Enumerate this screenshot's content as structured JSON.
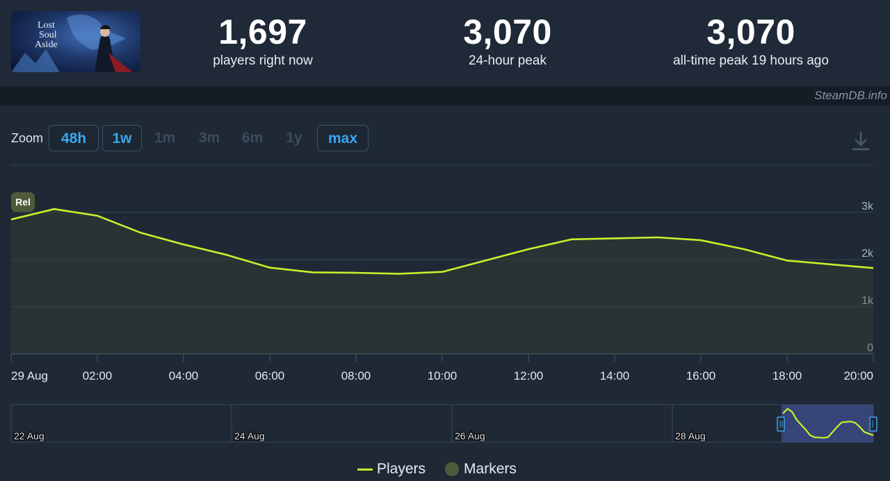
{
  "game": {
    "title_line1": "Lost",
    "title_line2": "Soul",
    "title_line3": "Aside"
  },
  "stats": [
    {
      "value": "1,697",
      "label": "players right now"
    },
    {
      "value": "3,070",
      "label": "24-hour peak"
    },
    {
      "value": "3,070",
      "label": "all-time peak 19 hours ago"
    }
  ],
  "credit": "SteamDB.info",
  "zoom": {
    "label": "Zoom",
    "buttons": [
      {
        "label": "48h",
        "active": true
      },
      {
        "label": "1w",
        "active": true
      },
      {
        "label": "1m",
        "active": false
      },
      {
        "label": "3m",
        "active": false
      },
      {
        "label": "6m",
        "active": false
      },
      {
        "label": "1y",
        "active": false
      },
      {
        "label": "max",
        "active": true
      }
    ]
  },
  "marker_badge": "Rel",
  "legend": {
    "players": "Players",
    "markers": "Markers"
  },
  "colors": {
    "line": "#c8f02c",
    "accent": "#3ba7f0",
    "marker": "#4f5a38"
  },
  "icons": {
    "download": "download-icon"
  },
  "chart_data": {
    "type": "line",
    "series": [
      {
        "name": "Players",
        "x": [
          "29 Aug 00:00",
          "01:00",
          "02:00",
          "03:00",
          "04:00",
          "05:00",
          "06:00",
          "07:00",
          "08:00",
          "09:00",
          "10:00",
          "11:00",
          "12:00",
          "13:00",
          "14:00",
          "15:00",
          "16:00",
          "17:00",
          "18:00",
          "19:00",
          "20:00"
        ],
        "values": [
          2850,
          3070,
          2930,
          2570,
          2320,
          2100,
          1830,
          1730,
          1720,
          1700,
          1740,
          1980,
          2220,
          2430,
          2450,
          2470,
          2410,
          2220,
          1980,
          1900,
          1820
        ]
      }
    ],
    "x_tick_labels": [
      "29 Aug",
      "02:00",
      "04:00",
      "06:00",
      "08:00",
      "10:00",
      "12:00",
      "14:00",
      "16:00",
      "18:00",
      "20:00"
    ],
    "y_tick_labels": [
      "0",
      "1k",
      "2k",
      "3k"
    ],
    "ylim": [
      0,
      3000
    ],
    "grid": true,
    "legend_position": "bottom-center",
    "markers": [
      {
        "label": "Rel",
        "x": "29 Aug 00:00"
      }
    ],
    "navigator": {
      "x_tick_labels": [
        "22 Aug",
        "24 Aug",
        "26 Aug",
        "28 Aug"
      ],
      "values": [
        2850,
        3070,
        2930,
        2570,
        2320,
        2100,
        1830,
        1730,
        1720,
        1700,
        1740,
        1980,
        2220,
        2430,
        2450,
        2470,
        2410,
        2220,
        1980,
        1900,
        1820
      ]
    }
  }
}
